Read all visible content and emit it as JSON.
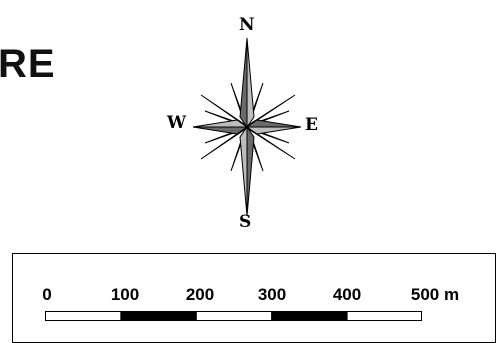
{
  "title_fragment": "RE",
  "compass": {
    "north": "N",
    "west": "W",
    "east": "E",
    "south": "S"
  },
  "scale": {
    "ticks": [
      "0",
      "100",
      "200",
      "300",
      "400",
      "500 m"
    ],
    "segment_fill": [
      "white",
      "black",
      "white",
      "black",
      "white"
    ]
  },
  "colors": {
    "needle_fill": "#8a8a8a",
    "needle_stroke": "#000000",
    "scale_dark": "#000000",
    "scale_light": "#ffffff"
  }
}
